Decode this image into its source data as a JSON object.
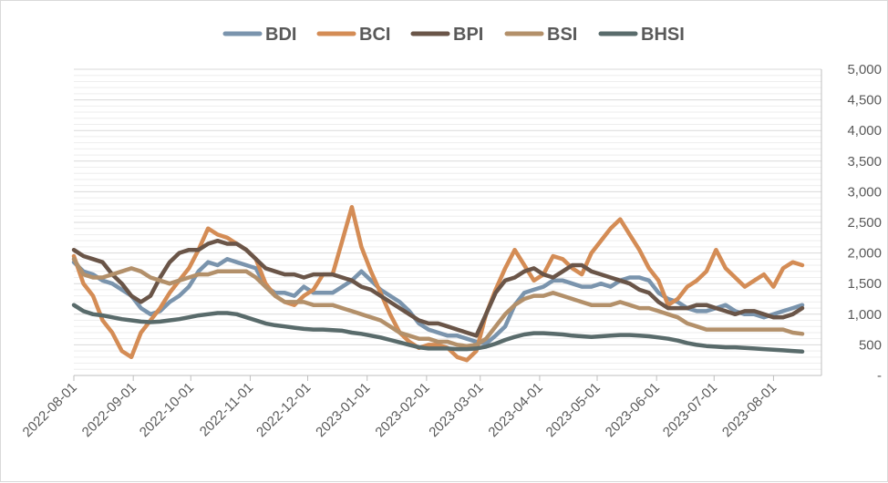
{
  "chart_data": {
    "type": "line",
    "title": "",
    "xlabel": "",
    "ylabel": "",
    "ylim": [
      0,
      5000
    ],
    "y_ticks": [
      0,
      500,
      1000,
      1500,
      2000,
      2500,
      3000,
      3500,
      4000,
      4500,
      5000
    ],
    "y_tick_labels": [
      "-",
      "500",
      "1,000",
      "1,500",
      "2,000",
      "2,500",
      "3,000",
      "3,500",
      "4,000",
      "4,500",
      "5,000"
    ],
    "x_ticks": [
      "2022-08-01",
      "2022-09-01",
      "2022-10-01",
      "2022-11-01",
      "2022-12-01",
      "2023-01-01",
      "2023-02-01",
      "2023-03-01",
      "2023-04-01",
      "2023-05-01",
      "2023-06-01",
      "2023-07-01",
      "2023-08-01"
    ],
    "legend_position": "top",
    "grid": true,
    "x_start": "2022-08-01",
    "step_days": 5,
    "series": [
      {
        "name": "BDI",
        "color": "#7a94ad",
        "values": [
          1850,
          1700,
          1650,
          1550,
          1500,
          1400,
          1300,
          1100,
          1000,
          1050,
          1200,
          1300,
          1450,
          1700,
          1850,
          1800,
          1900,
          1850,
          1800,
          1750,
          1450,
          1350,
          1350,
          1300,
          1450,
          1350,
          1350,
          1350,
          1450,
          1550,
          1700,
          1550,
          1400,
          1300,
          1200,
          1050,
          850,
          750,
          700,
          650,
          650,
          600,
          550,
          520,
          650,
          800,
          1150,
          1350,
          1400,
          1450,
          1550,
          1550,
          1500,
          1450,
          1450,
          1500,
          1450,
          1550,
          1600,
          1600,
          1550,
          1350,
          1250,
          1200,
          1100,
          1050,
          1050,
          1100,
          1150,
          1050,
          1000,
          1000,
          950,
          1000,
          1050,
          1100,
          1150
        ]
      },
      {
        "name": "BCI",
        "color": "#d48c55",
        "values": [
          1950,
          1500,
          1300,
          900,
          700,
          400,
          300,
          700,
          900,
          1100,
          1350,
          1550,
          1750,
          2050,
          2400,
          2300,
          2250,
          2150,
          2050,
          1900,
          1500,
          1300,
          1200,
          1150,
          1300,
          1400,
          1650,
          1650,
          2200,
          2750,
          2100,
          1700,
          1350,
          1000,
          700,
          550,
          450,
          500,
          500,
          450,
          300,
          250,
          400,
          1000,
          1400,
          1750,
          2050,
          1800,
          1550,
          1650,
          1950,
          1900,
          1750,
          1650,
          2000,
          2200,
          2400,
          2550,
          2300,
          2050,
          1750,
          1550,
          1150,
          1250,
          1450,
          1550,
          1700,
          2050,
          1750,
          1600,
          1450,
          1550,
          1650,
          1450,
          1750,
          1850,
          1800
        ]
      },
      {
        "name": "BPI",
        "color": "#6a5548",
        "values": [
          2050,
          1950,
          1900,
          1850,
          1650,
          1500,
          1300,
          1200,
          1300,
          1600,
          1850,
          2000,
          2050,
          2050,
          2150,
          2200,
          2150,
          2150,
          2050,
          1900,
          1750,
          1700,
          1650,
          1650,
          1600,
          1650,
          1650,
          1650,
          1600,
          1550,
          1450,
          1400,
          1300,
          1200,
          1100,
          1000,
          900,
          850,
          850,
          800,
          750,
          700,
          650,
          1000,
          1350,
          1550,
          1600,
          1700,
          1750,
          1650,
          1600,
          1700,
          1800,
          1800,
          1700,
          1650,
          1600,
          1550,
          1500,
          1400,
          1350,
          1200,
          1100,
          1100,
          1100,
          1150,
          1150,
          1100,
          1050,
          1000,
          1050,
          1050,
          1000,
          950,
          950,
          1000,
          1100
        ]
      },
      {
        "name": "BSI",
        "color": "#b3906a",
        "values": [
          1900,
          1650,
          1600,
          1600,
          1650,
          1700,
          1750,
          1700,
          1600,
          1550,
          1500,
          1550,
          1600,
          1650,
          1650,
          1700,
          1700,
          1700,
          1700,
          1600,
          1450,
          1300,
          1200,
          1200,
          1200,
          1150,
          1150,
          1150,
          1100,
          1050,
          1000,
          950,
          900,
          800,
          700,
          650,
          600,
          600,
          550,
          550,
          500,
          480,
          500,
          600,
          800,
          1000,
          1150,
          1250,
          1300,
          1300,
          1350,
          1300,
          1250,
          1200,
          1150,
          1150,
          1150,
          1200,
          1150,
          1100,
          1100,
          1050,
          1000,
          950,
          850,
          800,
          750,
          750,
          750,
          750,
          750,
          750,
          750,
          750,
          750,
          700,
          680
        ]
      },
      {
        "name": "BHSI",
        "color": "#596b6b",
        "values": [
          1150,
          1050,
          1000,
          980,
          950,
          920,
          900,
          880,
          870,
          880,
          900,
          920,
          950,
          980,
          1000,
          1020,
          1020,
          1000,
          950,
          900,
          850,
          820,
          800,
          780,
          760,
          750,
          750,
          740,
          730,
          700,
          680,
          650,
          620,
          580,
          540,
          500,
          460,
          440,
          440,
          440,
          430,
          430,
          440,
          470,
          520,
          580,
          630,
          670,
          690,
          690,
          680,
          670,
          650,
          640,
          630,
          640,
          650,
          660,
          660,
          650,
          640,
          620,
          600,
          570,
          530,
          500,
          480,
          470,
          460,
          460,
          450,
          440,
          430,
          420,
          410,
          400,
          390
        ]
      }
    ]
  }
}
